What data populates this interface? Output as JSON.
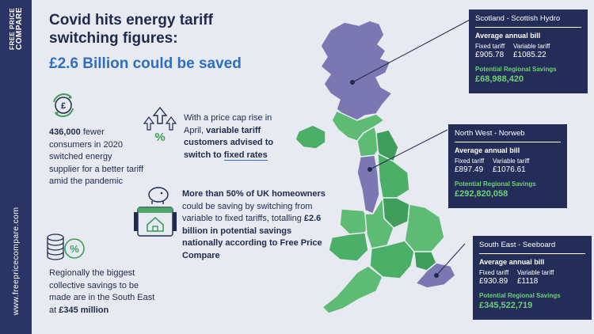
{
  "brand": {
    "line1": "FREE PRICE",
    "line2": "COMPARE",
    "url": "www.freepricecompare.com"
  },
  "headline": {
    "line1": "Covid hits energy tariff",
    "line2": "switching figures:",
    "accent": "£2.6 Billion could be saved"
  },
  "stats": {
    "fewer_count": "436,000",
    "fewer_rest": "fewer consumers in 2020 switched energy supplier for a better tariff amid the pandemic",
    "cap_pre": "With a price cap rise in April,",
    "cap_bold": "variable tariff customers advised to switch to",
    "cap_link": "fixed rates",
    "homeowners_bold": "More than 50% of UK homeowners",
    "homeowners_mid": "could be saving by switching from variable to fixed tariffs, totalling",
    "homeowners_amount": "£2.6 billion in potential savings nationally according to Free Price Compare",
    "regional_pre": "Regionally the biggest collective savings to be made are in the South East at",
    "regional_amount": "£345 million"
  },
  "regions": [
    {
      "title": "Scotland - Scottish Hydro",
      "sub": "Average annual bill",
      "fixed_label": "Fixed tariff",
      "variable_label": "Variable tariff",
      "fixed": "£905.78",
      "variable": "£1085.22",
      "savings_label": "Potential Regional Savings",
      "savings": "£68,988,420"
    },
    {
      "title": "North West - Norweb",
      "sub": "Average annual bill",
      "fixed_label": "Fixed tariff",
      "variable_label": "Variable tariff",
      "fixed": "£897.49",
      "variable": "£1076.61",
      "savings_label": "Potential Regional Savings",
      "savings": "£292,820,058"
    },
    {
      "title": "South East - Seeboard",
      "sub": "Average annual bill",
      "fixed_label": "Fixed tariff",
      "variable_label": "Variable tariff",
      "fixed": "£930.89",
      "variable": "£1118",
      "savings_label": "Potential Regional Savings",
      "savings": "£345,522,719"
    }
  ],
  "colors": {
    "navy": "#232d57",
    "accent_blue": "#2f6fbe",
    "green": "#4caf68",
    "purple": "#7b77b3",
    "savings_green": "#6fd07c"
  },
  "icons": [
    "brand-logo",
    "recycle-pound-icon",
    "arrows-percent-icon",
    "piggybank-house-icon",
    "coins-percent-icon"
  ]
}
